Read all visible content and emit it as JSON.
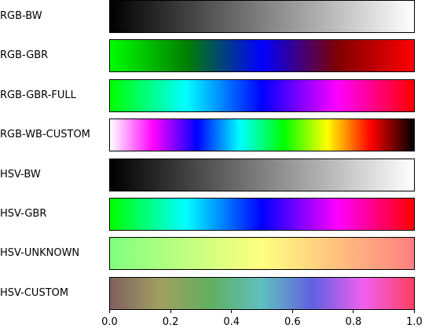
{
  "chart_data": {
    "type": "colormap",
    "xlim": [
      0,
      1
    ],
    "ticks": [
      "0.0",
      "0.2",
      "0.4",
      "0.6",
      "0.8",
      "1.0"
    ],
    "tick_values": [
      0,
      0.2,
      0.4,
      0.6,
      0.8,
      1.0
    ],
    "colormaps": [
      {
        "name": "RGB-BW",
        "stops": [
          "#000000",
          "#ffffff"
        ]
      },
      {
        "name": "RGB-GBR",
        "stops": [
          "#00ff00",
          "#008000",
          "#0000ff",
          "#800000",
          "#ff0000"
        ]
      },
      {
        "name": "RGB-GBR-FULL",
        "stops": [
          "#00ff00",
          "#00ffff",
          "#0000ff",
          "#ff00ff",
          "#ff0000"
        ]
      },
      {
        "name": "RGB-WB-CUSTOM",
        "stops": [
          "#ffffff",
          "#ff00ff",
          "#0000ff",
          "#00ffff",
          "#00ff00",
          "#ffff00",
          "#ff0000",
          "#000000"
        ]
      },
      {
        "name": "HSV-BW",
        "stops": [
          "#000000",
          "#ffffff"
        ]
      },
      {
        "name": "HSV-GBR",
        "stops": [
          "#00ff00",
          "#00ffff",
          "#0000ff",
          "#ff00ff",
          "#ff0000"
        ]
      },
      {
        "name": "HSV-UNKNOWN",
        "stops": [
          "#80ff80",
          "#c0ff80",
          "#ffff80",
          "#ffc080",
          "#ff8080"
        ]
      },
      {
        "name": "HSV-CUSTOM",
        "stops": [
          "#806060",
          "#a0a060",
          "#60b060",
          "#60c0c0",
          "#6060e0",
          "#f060f0",
          "#ff4060"
        ]
      }
    ]
  }
}
